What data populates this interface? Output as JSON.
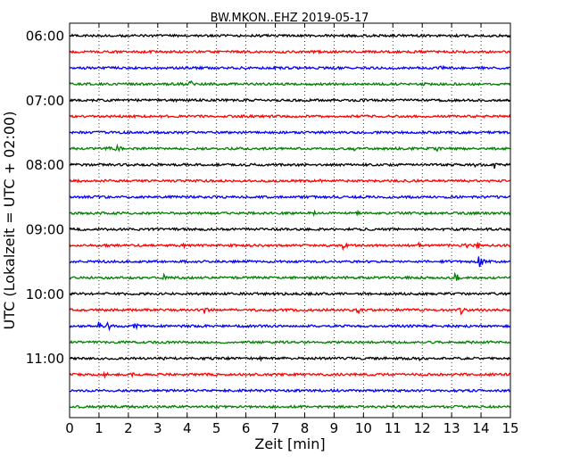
{
  "chart_data": {
    "type": "line",
    "title": "BW.MKON..EHZ 2019-05-17",
    "xlabel": "Zeit  [min]",
    "ylabel": "UTC (Lokalzeit = UTC + 02:00)",
    "xlim": [
      0,
      15
    ],
    "x_ticks": [
      "0",
      "1",
      "2",
      "3",
      "4",
      "5",
      "6",
      "7",
      "8",
      "9",
      "10",
      "11",
      "12",
      "13",
      "14",
      "15"
    ],
    "y_ticks": [
      "06:00",
      "07:00",
      "08:00",
      "09:00",
      "10:00",
      "11:00"
    ],
    "grid": "vertical dotted at each minute",
    "trace_interval_min": 15,
    "colors": [
      "#000000",
      "#ff0000",
      "#0000ff",
      "#008000"
    ],
    "traces": [
      {
        "start": "06:00",
        "color": "#000000",
        "events": []
      },
      {
        "start": "06:15",
        "color": "#ff0000",
        "events": [
          {
            "t": 6.8,
            "amp": 2.5
          }
        ]
      },
      {
        "start": "06:30",
        "color": "#0000ff",
        "events": [
          {
            "t": 11.8,
            "amp": 2.5
          },
          {
            "t": 12.6,
            "amp": 5
          }
        ]
      },
      {
        "start": "06:45",
        "color": "#008000",
        "events": [
          {
            "t": 3.8,
            "amp": 3
          },
          {
            "t": 4.1,
            "amp": 5
          },
          {
            "t": 12.0,
            "amp": 3
          }
        ]
      },
      {
        "start": "07:00",
        "color": "#000000",
        "events": []
      },
      {
        "start": "07:15",
        "color": "#ff0000",
        "events": []
      },
      {
        "start": "07:30",
        "color": "#0000ff",
        "events": []
      },
      {
        "start": "07:45",
        "color": "#008000",
        "events": [
          {
            "t": 1.3,
            "amp": 5
          },
          {
            "t": 1.6,
            "amp": 7
          },
          {
            "t": 9.7,
            "amp": 3
          },
          {
            "t": 12.5,
            "amp": 3
          }
        ]
      },
      {
        "start": "08:00",
        "color": "#000000",
        "events": [
          {
            "t": 13.8,
            "amp": 4
          },
          {
            "t": 14.4,
            "amp": 9
          }
        ]
      },
      {
        "start": "08:15",
        "color": "#ff0000",
        "events": [
          {
            "t": 8.5,
            "amp": 2
          }
        ]
      },
      {
        "start": "08:30",
        "color": "#0000ff",
        "events": []
      },
      {
        "start": "08:45",
        "color": "#008000",
        "events": [
          {
            "t": 8.3,
            "amp": 3
          },
          {
            "t": 9.8,
            "amp": 2.5
          }
        ]
      },
      {
        "start": "09:00",
        "color": "#000000",
        "events": [
          {
            "t": 2.5,
            "amp": 2
          }
        ]
      },
      {
        "start": "09:15",
        "color": "#ff0000",
        "events": [
          {
            "t": 3.9,
            "amp": 4
          },
          {
            "t": 9.3,
            "amp": 6
          },
          {
            "t": 11.9,
            "amp": 5
          },
          {
            "t": 13.5,
            "amp": 4
          },
          {
            "t": 13.9,
            "amp": 8
          }
        ]
      },
      {
        "start": "09:30",
        "color": "#0000ff",
        "events": [
          {
            "t": 13.9,
            "amp": 12
          }
        ]
      },
      {
        "start": "09:45",
        "color": "#008000",
        "events": [
          {
            "t": 3.2,
            "amp": 4
          },
          {
            "t": 13.1,
            "amp": 9
          }
        ]
      },
      {
        "start": "10:00",
        "color": "#000000",
        "events": []
      },
      {
        "start": "10:15",
        "color": "#ff0000",
        "events": [
          {
            "t": 4.6,
            "amp": 7
          },
          {
            "t": 9.8,
            "amp": 6
          },
          {
            "t": 13.3,
            "amp": 6
          }
        ]
      },
      {
        "start": "10:30",
        "color": "#0000ff",
        "events": [
          {
            "t": 1.0,
            "amp": 6
          },
          {
            "t": 1.3,
            "amp": 7
          },
          {
            "t": 2.2,
            "amp": 6
          }
        ]
      },
      {
        "start": "10:45",
        "color": "#008000",
        "events": [
          {
            "t": 8.2,
            "amp": 2
          }
        ]
      },
      {
        "start": "11:00",
        "color": "#000000",
        "events": [
          {
            "t": 3.2,
            "amp": 2.5
          },
          {
            "t": 6.5,
            "amp": 3
          },
          {
            "t": 11.9,
            "amp": 2.5
          }
        ]
      },
      {
        "start": "11:15",
        "color": "#ff0000",
        "events": [
          {
            "t": 1.2,
            "amp": 4
          },
          {
            "t": 2.1,
            "amp": 3.5
          },
          {
            "t": 2.9,
            "amp": 4
          }
        ]
      },
      {
        "start": "11:30",
        "color": "#0000ff",
        "events": []
      },
      {
        "start": "11:45",
        "color": "#008000",
        "events": []
      }
    ]
  }
}
